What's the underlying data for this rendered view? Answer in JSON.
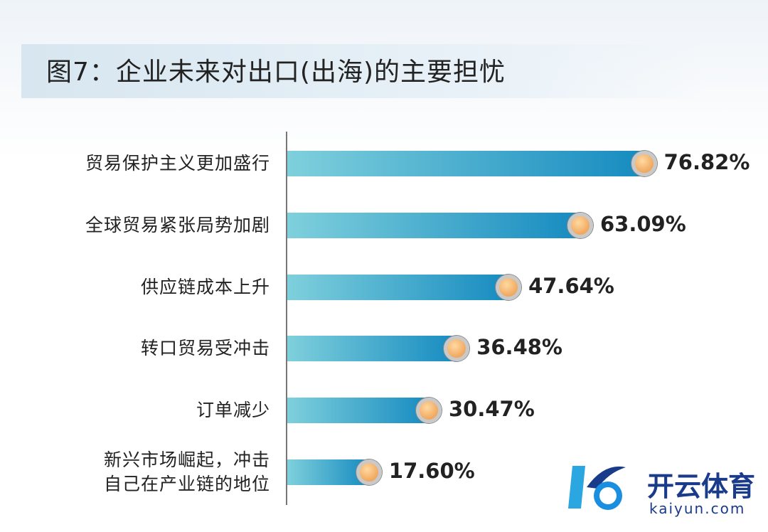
{
  "chart_data": {
    "type": "bar",
    "orientation": "horizontal",
    "title": "图7：企业未来对出口(出海)的主要担忧",
    "categories": [
      "贸易保护主义更加盛行",
      "全球贸易紧张局势加剧",
      "供应链成本上升",
      "转口贸易受冲击",
      "订单减少",
      "新兴市场崛起，冲击自己在产业链的地位"
    ],
    "values": [
      76.82,
      63.09,
      47.64,
      36.48,
      30.47,
      17.6
    ],
    "value_labels": [
      "76.82%",
      "63.09%",
      "47.64%",
      "36.48%",
      "30.47%",
      "17.60%"
    ],
    "colors": [
      "#7fd0dc",
      "#168bc0"
    ],
    "marker_color": "#f0a860"
  },
  "watermark": {
    "brand": "开云体育",
    "url": "kaiyun.com"
  }
}
